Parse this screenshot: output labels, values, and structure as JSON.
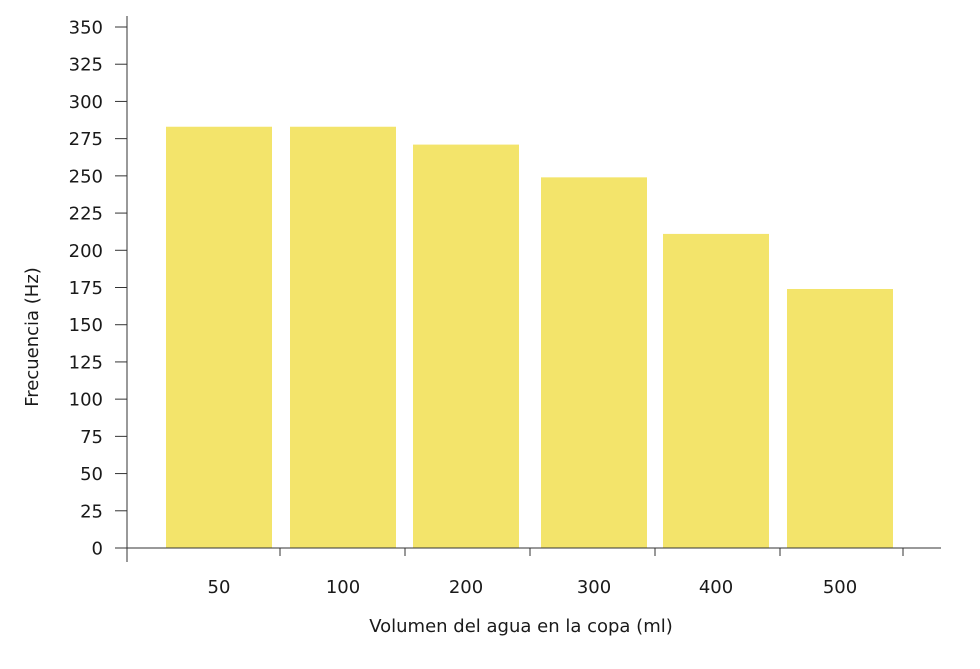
{
  "chart_data": {
    "type": "bar",
    "title": "",
    "xlabel": "Volumen del agua en la copa (ml)",
    "ylabel": "Frecuencia (Hz)",
    "categories": [
      "50",
      "100",
      "200",
      "300",
      "400",
      "500"
    ],
    "values": [
      283,
      283,
      271,
      249,
      211,
      174
    ],
    "ylim": [
      0,
      350
    ],
    "yticks": [
      "0",
      "25",
      "50",
      "75",
      "100",
      "125",
      "150",
      "175",
      "200",
      "225",
      "250",
      "275",
      "300",
      "325",
      "350"
    ],
    "grid": false,
    "legend": "none",
    "bar_color": "#f3e46b",
    "axis_color": "#333333"
  }
}
